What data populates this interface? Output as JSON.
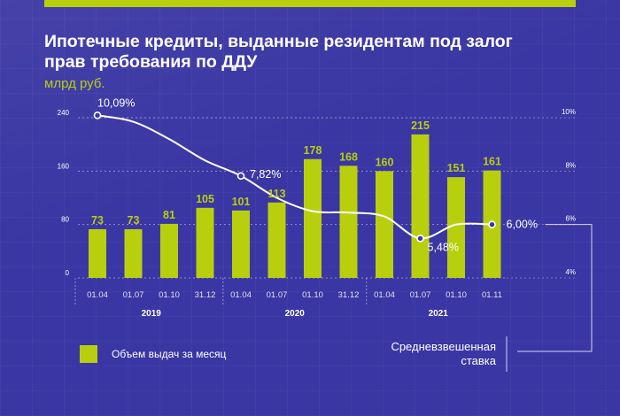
{
  "header": {
    "title": "Ипотечные кредиты, выданные резидентам под залог прав требования по ДДУ",
    "unit": "млрд руб."
  },
  "legend": {
    "label": "Объем выдач за месяц"
  },
  "rate_legend": {
    "label_line1": "Средневзвешенная",
    "label_line2": "ставка"
  },
  "colors": {
    "bar": "#b8cf0e",
    "background": "#3a36a3",
    "line": "#ffffff",
    "text": "#ffffff"
  },
  "chart_data": {
    "type": "bar",
    "title": "Ипотечные кредиты, выданные резидентам под залог прав требования по ДДУ",
    "ylabel": "млрд руб.",
    "categories": [
      "01.04",
      "01.07",
      "01.10",
      "31.12",
      "01.04",
      "01.07",
      "01.10",
      "31.12",
      "01.04",
      "01.07",
      "01.10",
      "01.11"
    ],
    "groups": [
      {
        "label": "2019",
        "from": 0,
        "to": 3
      },
      {
        "label": "2020",
        "from": 4,
        "to": 7
      },
      {
        "label": "2021",
        "from": 8,
        "to": 11
      }
    ],
    "series": [
      {
        "name": "Объем выдач за месяц",
        "type": "bar",
        "axis": "left",
        "values": [
          73,
          73,
          81,
          105,
          101,
          113,
          178,
          168,
          160,
          215,
          151,
          161
        ]
      },
      {
        "name": "Средневзвешенная ставка",
        "type": "line",
        "axis": "right",
        "values": [
          10.09,
          9.85,
          9.2,
          8.4,
          7.82,
          7.0,
          6.5,
          6.45,
          6.3,
          5.48,
          6.0,
          6.0
        ],
        "point_labels": [
          {
            "index": 0,
            "text": "10,09%"
          },
          {
            "index": 4,
            "text": "7,82%"
          },
          {
            "index": 9,
            "text": "5,48%"
          },
          {
            "index": 11,
            "text": "6,00%"
          }
        ]
      }
    ],
    "ylim": [
      0,
      240
    ],
    "yticks": [
      0,
      80,
      160,
      240
    ],
    "y2lim": [
      4,
      10
    ],
    "y2ticks": [
      {
        "value": 4,
        "label": "4%"
      },
      {
        "value": 6,
        "label": "6%"
      },
      {
        "value": 8,
        "label": "8%"
      },
      {
        "value": 10,
        "label": "10%"
      }
    ],
    "grid": true
  }
}
